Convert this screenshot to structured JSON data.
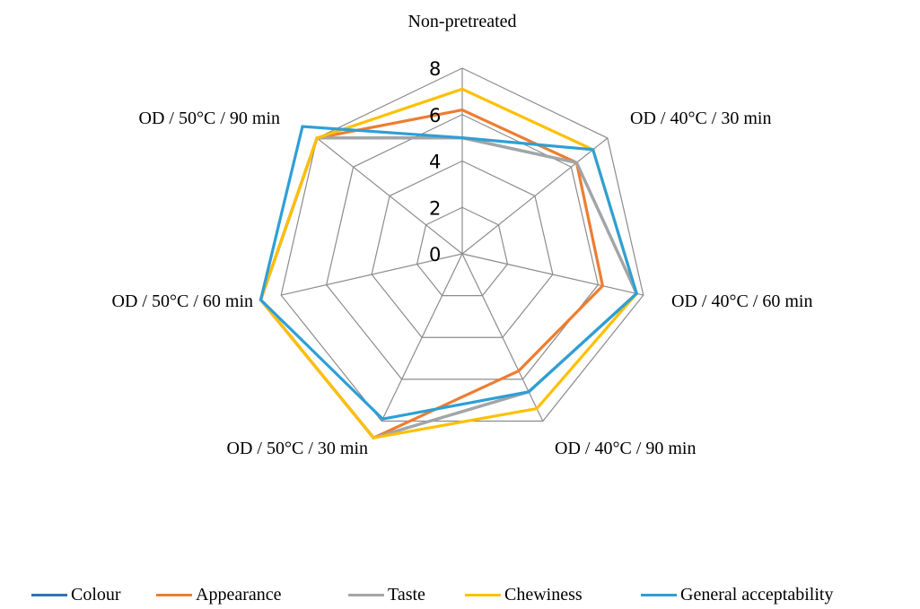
{
  "chart_data": {
    "type": "radar",
    "categories": [
      "Non-pretreated",
      "OD / 40°C / 30 min",
      "OD / 40°C / 60 min",
      "OD / 40°C / 90 min",
      "OD / 50°C / 30 min",
      "OD / 50°C / 60 min",
      "OD / 50°C / 90 min"
    ],
    "radial_range": [
      0,
      8
    ],
    "radial_ticks": [
      "0",
      "2",
      "4",
      "6",
      "8"
    ],
    "grid": true,
    "legend_position": "bottom",
    "series": [
      {
        "name": "Colour",
        "color": "#2e75b6",
        "values": [
          5,
          6.3,
          7.7,
          6.6,
          8.8,
          8.9,
          8
        ]
      },
      {
        "name": "Appearance",
        "color": "#ed7d31",
        "values": [
          6.2,
          6.3,
          6.2,
          5.6,
          8.8,
          8.9,
          8
        ]
      },
      {
        "name": "Taste",
        "color": "#a5a5a5",
        "values": [
          5,
          6.3,
          7.7,
          6.6,
          8.8,
          8.9,
          8
        ]
      },
      {
        "name": "Chewiness",
        "color": "#ffc000",
        "values": [
          7.1,
          7.2,
          7.7,
          7.4,
          8.8,
          8.9,
          8
        ]
      },
      {
        "name": "General acceptability",
        "color": "#2e9fd6",
        "values": [
          5,
          7.2,
          7.7,
          6.6,
          7.9,
          8.9,
          8.8
        ]
      }
    ]
  }
}
